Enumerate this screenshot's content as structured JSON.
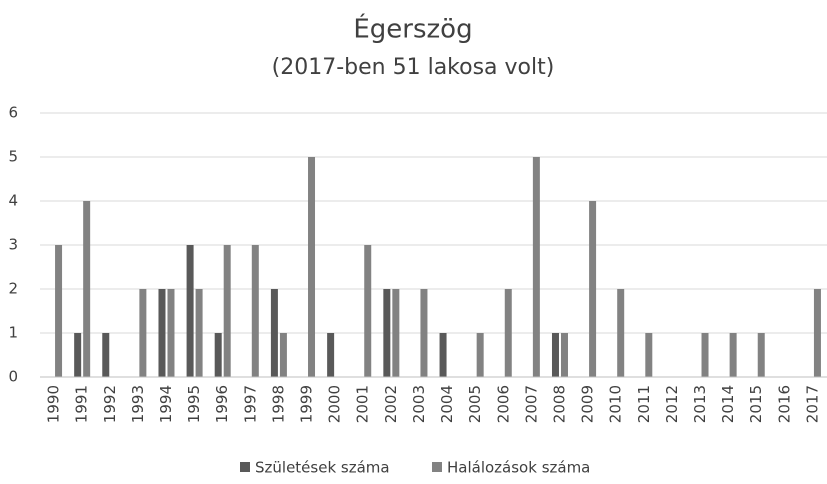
{
  "chart_data": {
    "type": "bar",
    "title": "Égerszög",
    "subtitle": "(2017-ben 51 lakosa volt)",
    "categories": [
      "1990",
      "1991",
      "1992",
      "1993",
      "1994",
      "1995",
      "1996",
      "1997",
      "1998",
      "1999",
      "2000",
      "2001",
      "2002",
      "2003",
      "2004",
      "2005",
      "2006",
      "2007",
      "2008",
      "2009",
      "2010",
      "2011",
      "2012",
      "2013",
      "2014",
      "2015",
      "2016",
      "2017"
    ],
    "series": [
      {
        "name": "Születések száma",
        "color": "#595959",
        "values": [
          0,
          1,
          1,
          0,
          2,
          3,
          1,
          0,
          2,
          0,
          1,
          0,
          2,
          0,
          1,
          0,
          0,
          0,
          1,
          0,
          0,
          0,
          0,
          0,
          0,
          0,
          0,
          0
        ]
      },
      {
        "name": "Halálozások száma",
        "color": "#828282",
        "values": [
          3,
          4,
          0,
          2,
          2,
          2,
          3,
          3,
          1,
          5,
          0,
          3,
          2,
          2,
          0,
          1,
          2,
          5,
          1,
          4,
          2,
          1,
          0,
          1,
          1,
          1,
          0,
          2
        ]
      }
    ],
    "ylim": [
      0,
      6
    ],
    "yticks": [
      0,
      1,
      2,
      3,
      4,
      5,
      6
    ],
    "grid": true,
    "legend": "bottom"
  }
}
